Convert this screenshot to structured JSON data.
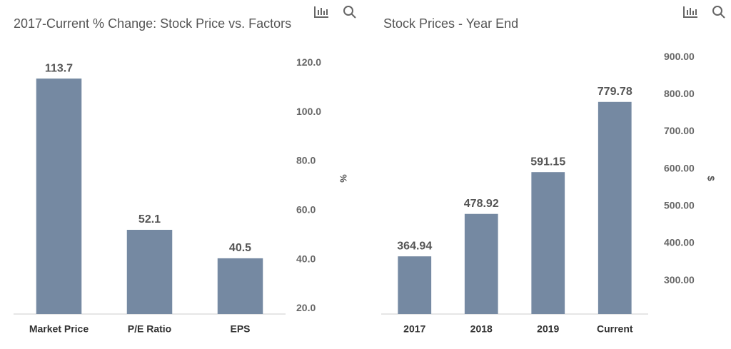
{
  "chart_data": [
    {
      "type": "bar",
      "title": "2017-Current % Change: Stock Price vs. Factors",
      "categories": [
        "Market Price",
        "P/E Ratio",
        "EPS"
      ],
      "values": [
        113.7,
        52.1,
        40.5
      ],
      "color": "#7589a2",
      "y_label": "%",
      "ylim": [
        17.8,
        130
      ],
      "yticks": [
        {
          "value": 20,
          "label": "20.0"
        },
        {
          "value": 40,
          "label": "40.0"
        },
        {
          "value": 60,
          "label": "60.0"
        },
        {
          "value": 80,
          "label": "80.0"
        },
        {
          "value": 100,
          "label": "100.0"
        },
        {
          "value": 120,
          "label": "120.0"
        }
      ]
    },
    {
      "type": "bar",
      "title": "Stock Prices - Year End",
      "categories": [
        "2017",
        "2018",
        "2019",
        "Current"
      ],
      "values": [
        364.94,
        478.92,
        591.15,
        779.78
      ],
      "color": "#7589a2",
      "y_label": "$",
      "ylim": [
        210,
        950
      ],
      "yticks": [
        {
          "value": 300,
          "label": "300.00"
        },
        {
          "value": 400,
          "label": "400.00"
        },
        {
          "value": 500,
          "label": "500.00"
        },
        {
          "value": 600,
          "label": "600.00"
        },
        {
          "value": 700,
          "label": "700.00"
        },
        {
          "value": 800,
          "label": "800.00"
        },
        {
          "value": 900,
          "label": "900.00"
        }
      ]
    }
  ]
}
